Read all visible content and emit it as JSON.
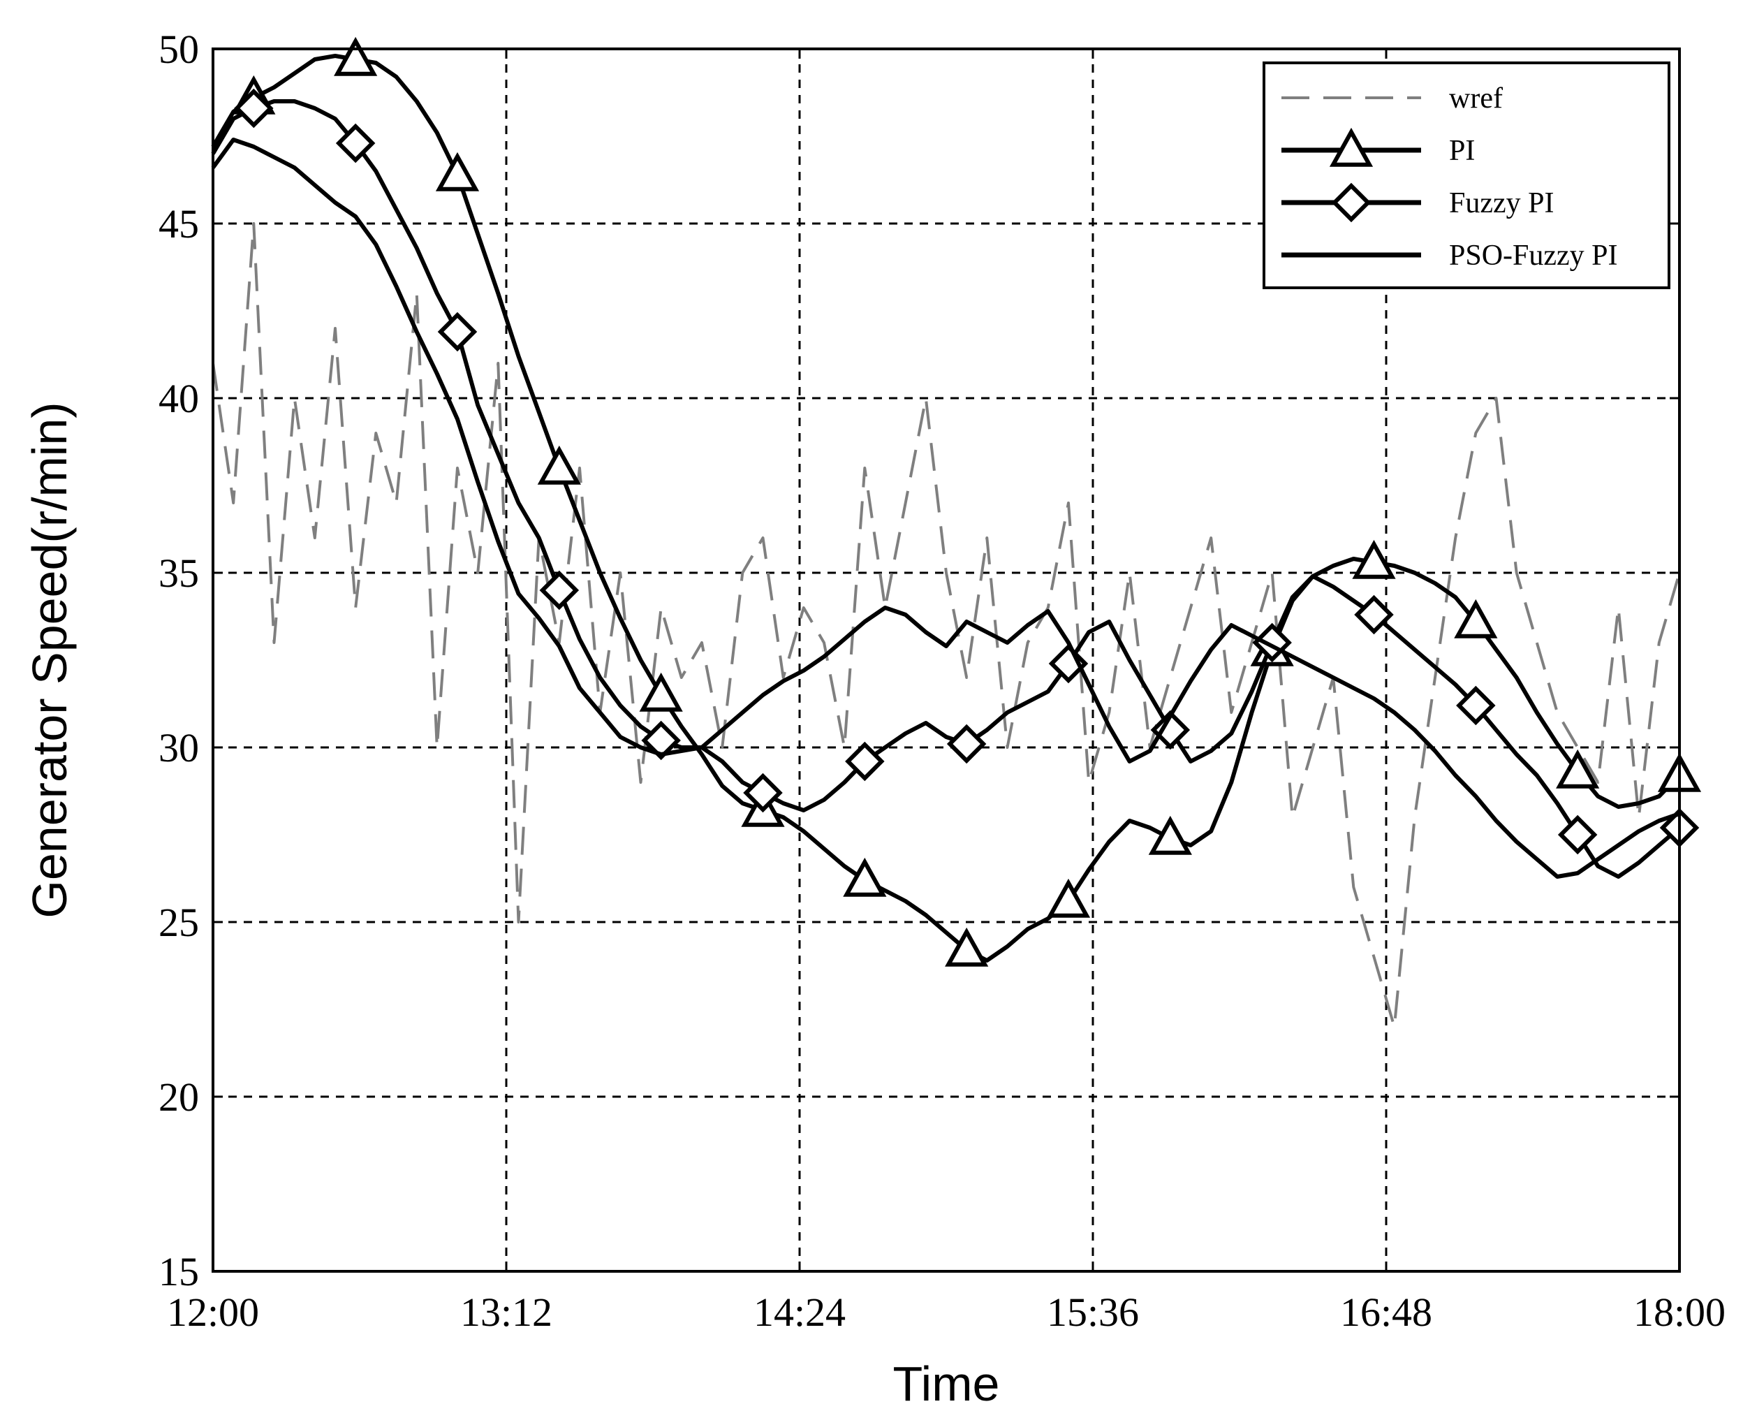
{
  "chart_data": {
    "type": "line",
    "xlabel": "Time",
    "ylabel": "Generator Speed(r/min)",
    "x_tick_labels": [
      "12:00",
      "13:12",
      "14:24",
      "15:36",
      "16:48",
      "18:00"
    ],
    "x_tick_minutes": [
      0,
      72,
      144,
      216,
      288,
      360
    ],
    "xlim_minutes": [
      0,
      360
    ],
    "ylim": [
      15,
      50
    ],
    "y_ticks": [
      15,
      20,
      25,
      30,
      35,
      40,
      45,
      50
    ],
    "grid": true,
    "legend_position": "top-right",
    "series": [
      {
        "name": "wref",
        "style": "dashed",
        "color": "#7f7f7f",
        "marker": "none",
        "x": [
          0,
          5,
          10,
          15,
          20,
          25,
          30,
          35,
          40,
          45,
          50,
          55,
          60,
          65,
          70,
          75,
          80,
          85,
          90,
          95,
          100,
          105,
          110,
          115,
          120,
          125,
          130,
          135,
          140,
          145,
          150,
          155,
          160,
          165,
          170,
          175,
          180,
          185,
          190,
          195,
          200,
          205,
          210,
          215,
          220,
          225,
          230,
          235,
          240,
          245,
          250,
          255,
          260,
          265,
          270,
          275,
          280,
          285,
          290,
          295,
          300,
          305,
          310,
          315,
          320,
          325,
          330,
          335,
          340,
          345,
          350,
          355,
          360
        ],
        "values": [
          41,
          37,
          45,
          33,
          40,
          36,
          42,
          34,
          39,
          37,
          43,
          30,
          38,
          35,
          41,
          25,
          36,
          33,
          38,
          31,
          35,
          29,
          34,
          32,
          33,
          30,
          35,
          36,
          32,
          34,
          33,
          30,
          38,
          34,
          37,
          40,
          35,
          32,
          36,
          30,
          33,
          34,
          37,
          29,
          31,
          35,
          30,
          32,
          34,
          36,
          31,
          33,
          35,
          28,
          30,
          32,
          26,
          24,
          22,
          28,
          32,
          36,
          39,
          40,
          35,
          33,
          31,
          30,
          29,
          34,
          28,
          33,
          35
        ]
      },
      {
        "name": "PI",
        "style": "solid",
        "color": "#000000",
        "marker": "triangle",
        "x": [
          0,
          5,
          10,
          15,
          20,
          25,
          30,
          35,
          40,
          45,
          50,
          55,
          60,
          65,
          70,
          75,
          80,
          85,
          90,
          95,
          100,
          105,
          110,
          115,
          120,
          125,
          130,
          135,
          140,
          145,
          150,
          155,
          160,
          165,
          170,
          175,
          180,
          185,
          190,
          195,
          200,
          205,
          210,
          215,
          220,
          225,
          230,
          235,
          240,
          245,
          250,
          255,
          260,
          265,
          270,
          275,
          280,
          285,
          290,
          295,
          300,
          305,
          310,
          315,
          320,
          325,
          330,
          335,
          340,
          345,
          350,
          355,
          360
        ],
        "values": [
          47.2,
          48.2,
          48.6,
          48.9,
          49.3,
          49.7,
          49.8,
          49.7,
          49.6,
          49.2,
          48.5,
          47.6,
          46.4,
          44.7,
          43.0,
          41.2,
          39.6,
          38.0,
          36.5,
          35.0,
          33.7,
          32.5,
          31.5,
          30.6,
          29.8,
          28.9,
          28.4,
          28.2,
          28.0,
          27.6,
          27.1,
          26.6,
          26.2,
          25.9,
          25.6,
          25.2,
          24.7,
          24.2,
          23.9,
          24.3,
          24.8,
          25.1,
          25.6,
          26.5,
          27.3,
          27.9,
          27.7,
          27.4,
          27.2,
          27.6,
          29.0,
          31.0,
          32.8,
          34.2,
          34.9,
          35.2,
          35.4,
          35.3,
          35.2,
          35.0,
          34.7,
          34.3,
          33.6,
          32.8,
          32.0,
          31.0,
          30.1,
          29.3,
          28.6,
          28.3,
          28.4,
          28.6,
          29.2
        ]
      },
      {
        "name": "Fuzzy PI",
        "style": "solid",
        "color": "#000000",
        "marker": "diamond",
        "x": [
          0,
          5,
          10,
          15,
          20,
          25,
          30,
          35,
          40,
          45,
          50,
          55,
          60,
          65,
          70,
          75,
          80,
          85,
          90,
          95,
          100,
          105,
          110,
          115,
          120,
          125,
          130,
          135,
          140,
          145,
          150,
          155,
          160,
          165,
          170,
          175,
          180,
          185,
          190,
          195,
          200,
          205,
          210,
          215,
          220,
          225,
          230,
          235,
          240,
          245,
          250,
          255,
          260,
          265,
          270,
          275,
          280,
          285,
          290,
          295,
          300,
          305,
          310,
          315,
          320,
          325,
          330,
          335,
          340,
          345,
          350,
          355,
          360
        ],
        "values": [
          47.0,
          48.0,
          48.3,
          48.5,
          48.5,
          48.3,
          48.0,
          47.3,
          46.5,
          45.4,
          44.3,
          43.0,
          41.9,
          39.8,
          38.4,
          37.0,
          36.0,
          34.5,
          33.1,
          32.0,
          31.2,
          30.6,
          30.2,
          30.0,
          30.0,
          29.6,
          29.0,
          28.7,
          28.4,
          28.2,
          28.5,
          29.0,
          29.6,
          30.0,
          30.4,
          30.7,
          30.3,
          30.1,
          30.5,
          31.0,
          31.3,
          31.6,
          32.4,
          33.3,
          33.6,
          32.5,
          31.5,
          30.5,
          29.6,
          29.9,
          30.4,
          31.6,
          33.0,
          34.3,
          34.9,
          34.6,
          34.2,
          33.8,
          33.3,
          32.8,
          32.3,
          31.8,
          31.2,
          30.5,
          29.8,
          29.2,
          28.4,
          27.5,
          26.6,
          26.3,
          26.7,
          27.2,
          27.7
        ]
      },
      {
        "name": "PSO-Fuzzy PI",
        "style": "solid",
        "color": "#000000",
        "marker": "none",
        "x": [
          0,
          5,
          10,
          15,
          20,
          25,
          30,
          35,
          40,
          45,
          50,
          55,
          60,
          65,
          70,
          75,
          80,
          85,
          90,
          95,
          100,
          105,
          110,
          115,
          120,
          125,
          130,
          135,
          140,
          145,
          150,
          155,
          160,
          165,
          170,
          175,
          180,
          185,
          190,
          195,
          200,
          205,
          210,
          215,
          220,
          225,
          230,
          235,
          240,
          245,
          250,
          255,
          260,
          265,
          270,
          275,
          280,
          285,
          290,
          295,
          300,
          305,
          310,
          315,
          320,
          325,
          330,
          335,
          340,
          345,
          350,
          355,
          360
        ],
        "values": [
          46.6,
          47.4,
          47.2,
          46.9,
          46.6,
          46.1,
          45.6,
          45.2,
          44.4,
          43.2,
          41.9,
          40.7,
          39.4,
          37.6,
          35.9,
          34.4,
          33.7,
          32.9,
          31.7,
          31.0,
          30.3,
          30.0,
          29.8,
          29.9,
          30.0,
          30.5,
          31.0,
          31.5,
          31.9,
          32.2,
          32.6,
          33.1,
          33.6,
          34.0,
          33.8,
          33.3,
          32.9,
          33.6,
          33.3,
          33.0,
          33.5,
          33.9,
          33.0,
          31.8,
          30.6,
          29.6,
          29.9,
          30.9,
          31.9,
          32.8,
          33.5,
          33.2,
          32.9,
          32.6,
          32.3,
          32.0,
          31.7,
          31.4,
          31.0,
          30.5,
          29.9,
          29.2,
          28.6,
          27.9,
          27.3,
          26.8,
          26.3,
          26.4,
          26.8,
          27.2,
          27.6,
          27.9,
          28.1
        ]
      }
    ]
  }
}
